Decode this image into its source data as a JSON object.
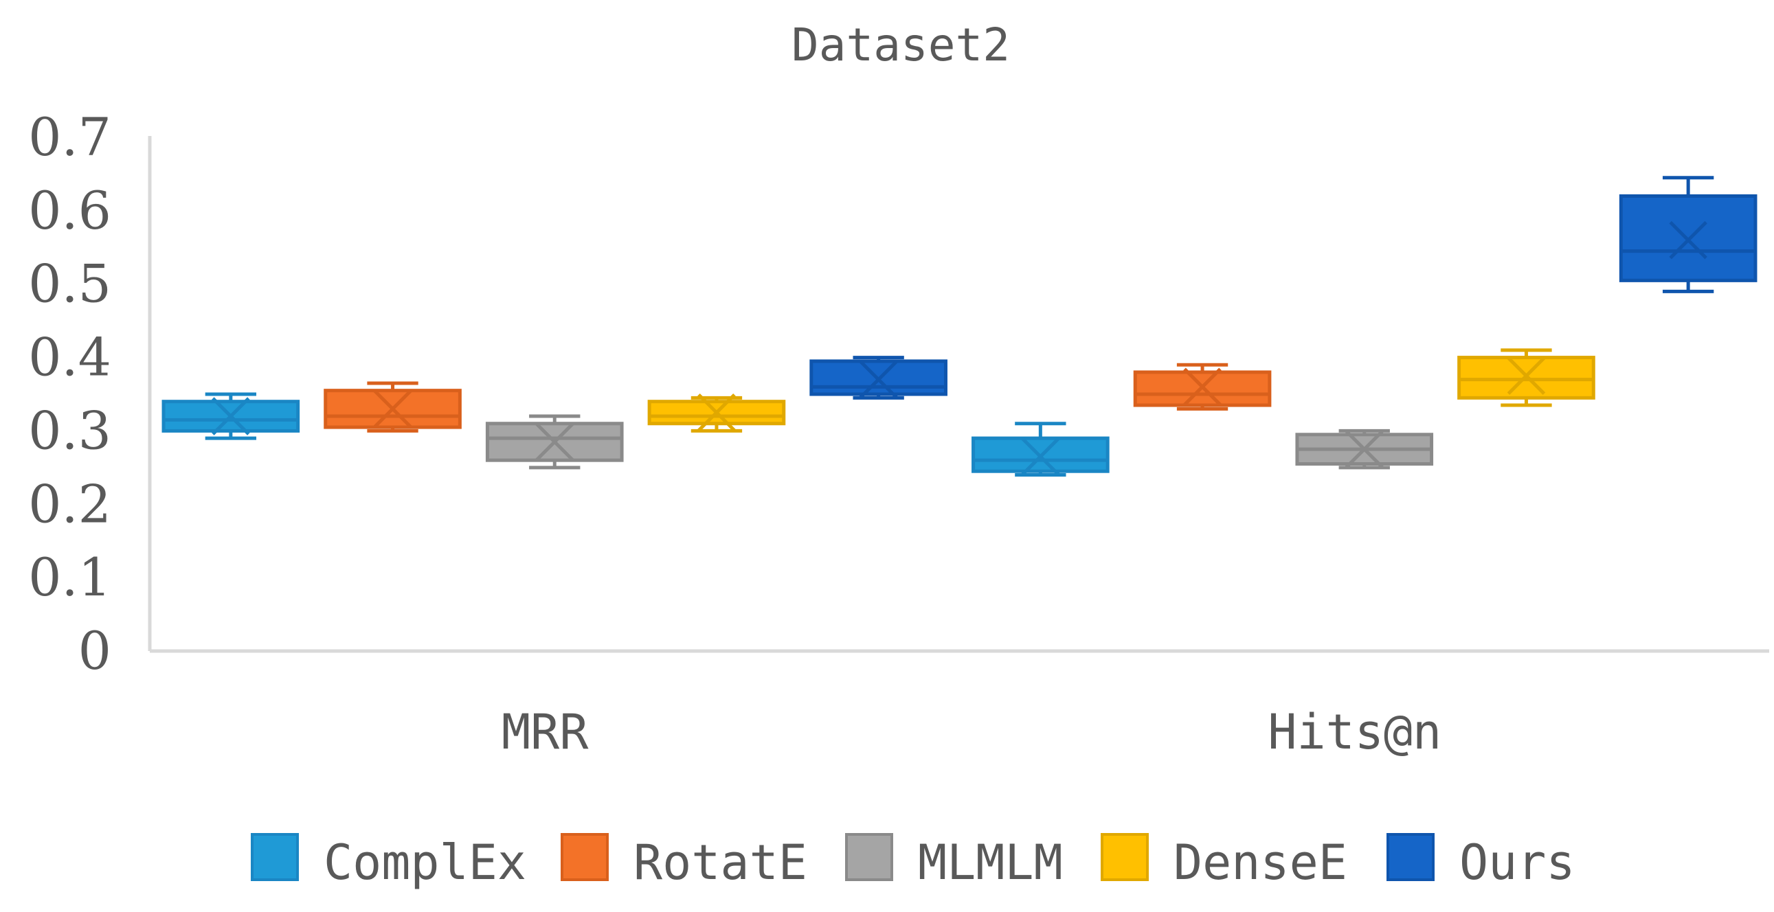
{
  "chart_data": {
    "type": "box",
    "title": "Dataset2",
    "xlabel": "",
    "ylabel": "",
    "ylim": [
      0,
      0.7
    ],
    "yticks": [
      0,
      0.1,
      0.2,
      0.3,
      0.4,
      0.5,
      0.6,
      0.7
    ],
    "ytick_labels": [
      "0",
      "0.1",
      "0.2",
      "0.3",
      "0.4",
      "0.5",
      "0.6",
      "0.7"
    ],
    "categories": [
      "MRR",
      "Hits@n"
    ],
    "legend_position": "bottom",
    "series": [
      {
        "name": "ComplEx",
        "color": "#1f9ad6",
        "stroke": "#1a86c4",
        "boxes": [
          {
            "min": 0.29,
            "q1": 0.3,
            "median": 0.315,
            "mean": 0.32,
            "q3": 0.34,
            "max": 0.35
          },
          {
            "min": 0.24,
            "q1": 0.245,
            "median": 0.26,
            "mean": 0.265,
            "q3": 0.29,
            "max": 0.31
          }
        ]
      },
      {
        "name": "RotatE",
        "color": "#f37228",
        "stroke": "#d9601c",
        "boxes": [
          {
            "min": 0.3,
            "q1": 0.305,
            "median": 0.32,
            "mean": 0.33,
            "q3": 0.355,
            "max": 0.365
          },
          {
            "min": 0.33,
            "q1": 0.335,
            "median": 0.35,
            "mean": 0.36,
            "q3": 0.38,
            "max": 0.39
          }
        ]
      },
      {
        "name": "MLMLM",
        "color": "#a5a5a5",
        "stroke": "#8a8a8a",
        "boxes": [
          {
            "min": 0.25,
            "q1": 0.26,
            "median": 0.29,
            "mean": 0.285,
            "q3": 0.31,
            "max": 0.32
          },
          {
            "min": 0.25,
            "q1": 0.255,
            "median": 0.275,
            "mean": 0.275,
            "q3": 0.295,
            "max": 0.3
          }
        ]
      },
      {
        "name": "DenseE",
        "color": "#ffc000",
        "stroke": "#e0a800",
        "boxes": [
          {
            "min": 0.3,
            "q1": 0.31,
            "median": 0.32,
            "mean": 0.325,
            "q3": 0.34,
            "max": 0.345
          },
          {
            "min": 0.335,
            "q1": 0.345,
            "median": 0.37,
            "mean": 0.375,
            "q3": 0.4,
            "max": 0.41
          }
        ]
      },
      {
        "name": "Ours",
        "color": "#1565c8",
        "stroke": "#0f55ad",
        "boxes": [
          {
            "min": 0.345,
            "q1": 0.35,
            "median": 0.36,
            "mean": 0.37,
            "q3": 0.395,
            "max": 0.4
          },
          {
            "min": 0.49,
            "q1": 0.505,
            "median": 0.545,
            "mean": 0.56,
            "q3": 0.62,
            "max": 0.645
          }
        ]
      }
    ]
  }
}
